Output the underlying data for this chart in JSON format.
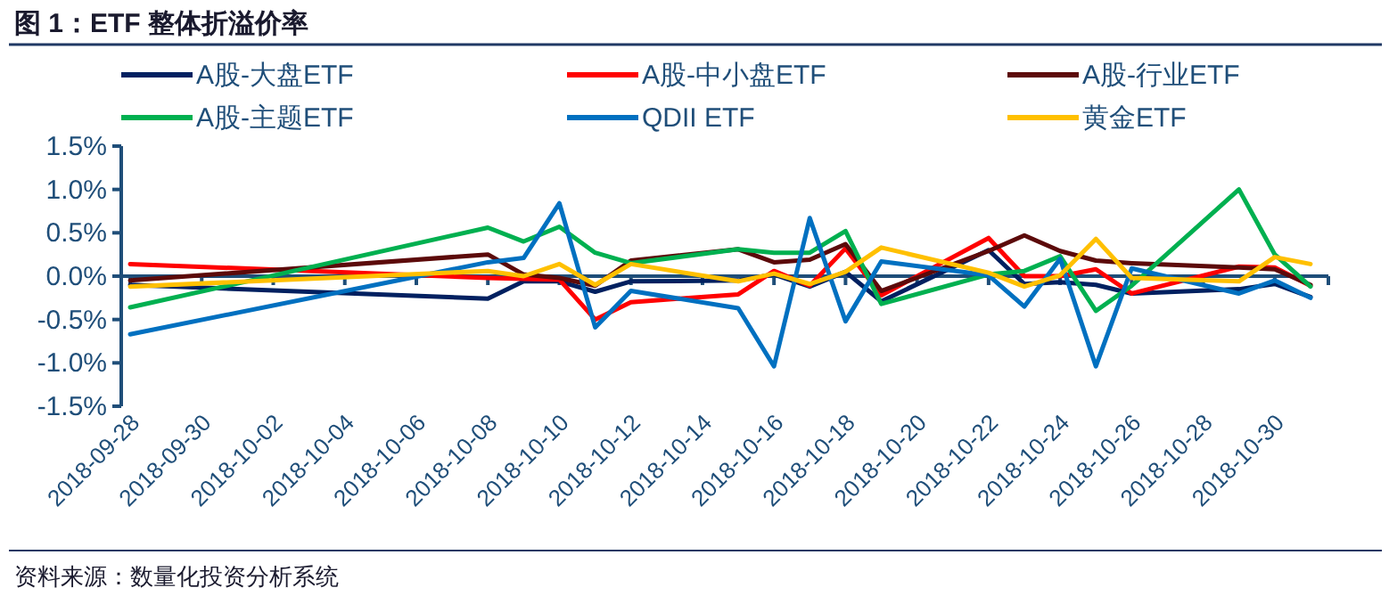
{
  "chart_data": {
    "type": "line",
    "title": "图 1：ETF 整体折溢价率",
    "annotations": [
      "资料来源：数量化投资分析系统"
    ],
    "legend": "top",
    "x": [
      "2018-09-28",
      "2018-10-08",
      "2018-10-09",
      "2018-10-10",
      "2018-10-11",
      "2018-10-12",
      "2018-10-15",
      "2018-10-16",
      "2018-10-17",
      "2018-10-18",
      "2018-10-19",
      "2018-10-22",
      "2018-10-23",
      "2018-10-24",
      "2018-10-25",
      "2018-10-26",
      "2018-10-29",
      "2018-10-30",
      "2018-10-31"
    ],
    "xlim": [
      "2018-09-27T18:00",
      "2018-10-31T12:00"
    ],
    "xticks": [
      "2018-09-28",
      "2018-09-30",
      "2018-10-02",
      "2018-10-04",
      "2018-10-06",
      "2018-10-08",
      "2018-10-10",
      "2018-10-12",
      "2018-10-14",
      "2018-10-16",
      "2018-10-18",
      "2018-10-20",
      "2018-10-22",
      "2018-10-24",
      "2018-10-26",
      "2018-10-28",
      "2018-10-30"
    ],
    "ylim": [
      -1.5,
      1.5
    ],
    "ref_lines": [
      {
        "axis": "y",
        "value": 0,
        "color": "#1f4e79"
      }
    ],
    "yticks": [
      {
        "value": -1.5,
        "label": "-1.5%"
      },
      {
        "value": -1.0,
        "label": "-1.0%"
      },
      {
        "value": -0.5,
        "label": "-0.5%"
      },
      {
        "value": 0,
        "label": "0.0%"
      },
      {
        "value": 0.5,
        "label": "0.5%"
      },
      {
        "value": 1.0,
        "label": "1.0%"
      },
      {
        "value": 1.5,
        "label": "1.5%"
      }
    ],
    "series": [
      {
        "name": "A股-大盘ETF",
        "color": "#002060",
        "values": [
          -0.1,
          -0.26,
          -0.06,
          -0.06,
          -0.18,
          -0.06,
          -0.05,
          0.02,
          -0.12,
          0.05,
          -0.29,
          0.3,
          -0.09,
          -0.07,
          -0.1,
          -0.2,
          -0.15,
          -0.09,
          -0.24
        ]
      },
      {
        "name": "A股-中小盘ETF",
        "color": "#ff0000",
        "values": [
          0.14,
          -0.02,
          -0.03,
          -0.04,
          -0.5,
          -0.3,
          -0.21,
          0.06,
          -0.11,
          0.32,
          -0.22,
          0.44,
          0.0,
          0.0,
          0.08,
          -0.2,
          0.11,
          0.1,
          -0.11
        ]
      },
      {
        "name": "A股-行业ETF",
        "color": "#5c0a0a",
        "values": [
          -0.05,
          0.25,
          0.02,
          -0.02,
          -0.11,
          0.18,
          0.31,
          0.16,
          0.19,
          0.37,
          -0.17,
          0.29,
          0.47,
          0.29,
          0.18,
          0.15,
          0.1,
          0.08,
          -0.1
        ]
      },
      {
        "name": "A股-主题ETF",
        "color": "#00b050",
        "values": [
          -0.36,
          0.56,
          0.4,
          0.57,
          0.27,
          0.15,
          0.31,
          0.27,
          0.27,
          0.52,
          -0.32,
          0.02,
          0.06,
          0.23,
          -0.4,
          -0.11,
          1.0,
          0.25,
          -0.12
        ]
      },
      {
        "name": "QDII ETF",
        "color": "#0070c0",
        "values": [
          -0.67,
          0.16,
          0.21,
          0.84,
          -0.59,
          -0.17,
          -0.37,
          -1.04,
          0.67,
          -0.52,
          0.17,
          0.01,
          -0.35,
          0.2,
          -1.04,
          0.09,
          -0.2,
          -0.05,
          -0.25
        ]
      },
      {
        "name": "黄金ETF",
        "color": "#ffc000",
        "values": [
          -0.12,
          0.06,
          0.0,
          0.14,
          -0.1,
          0.14,
          -0.06,
          0.03,
          -0.09,
          0.05,
          0.33,
          0.04,
          -0.12,
          0.01,
          0.43,
          -0.02,
          -0.06,
          0.22,
          0.14
        ]
      }
    ]
  }
}
